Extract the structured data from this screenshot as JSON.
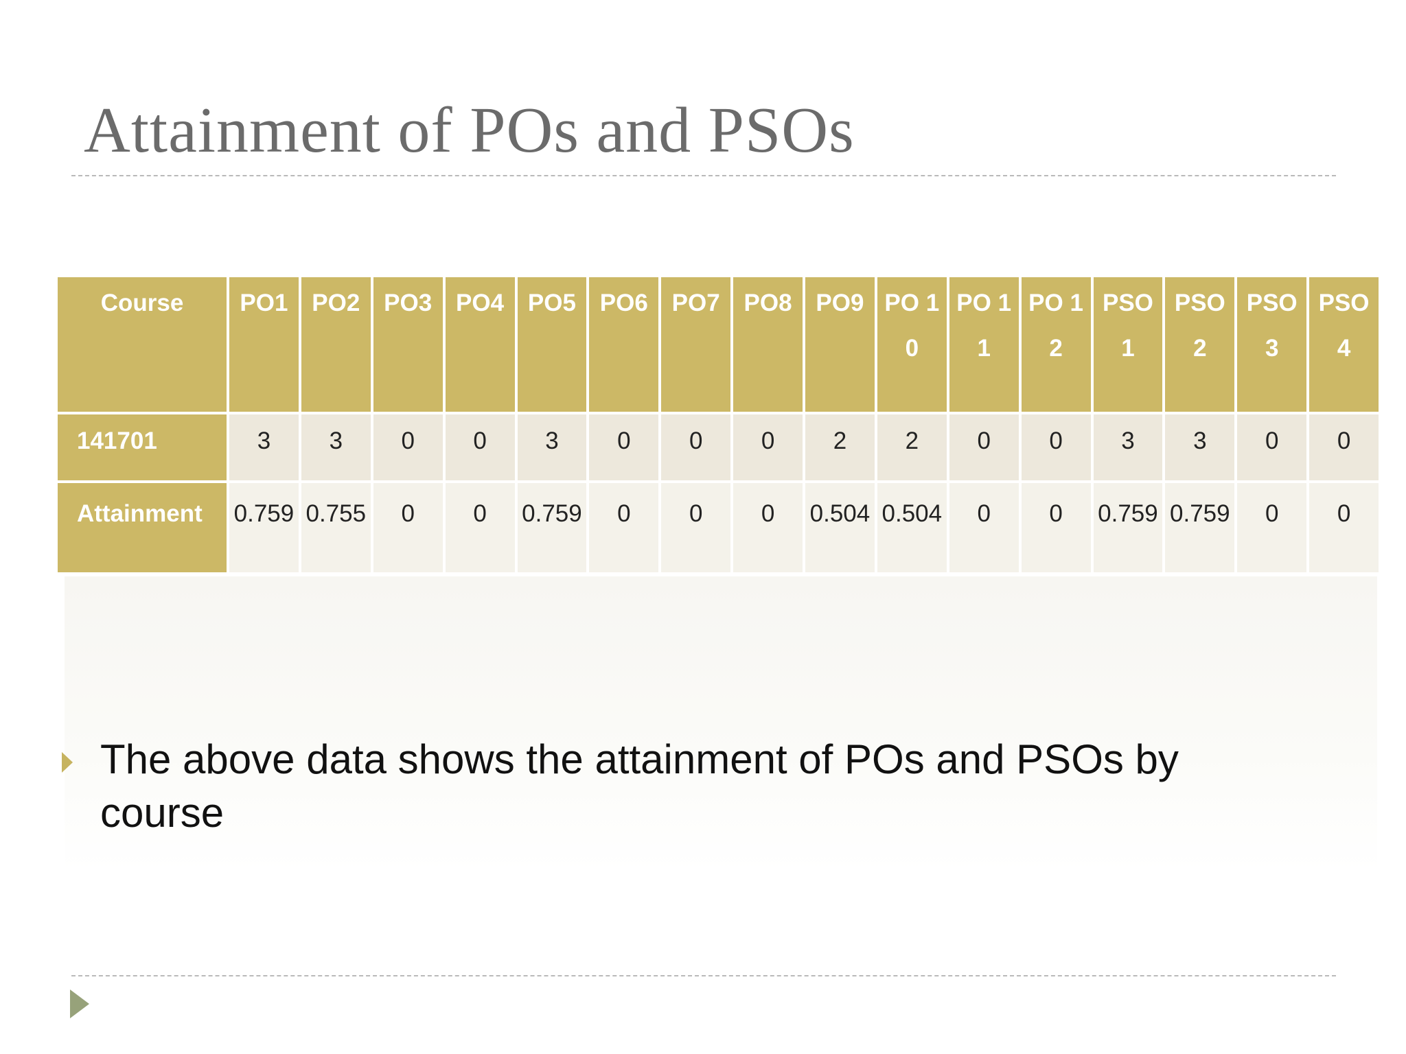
{
  "slide": {
    "title": "Attainment of POs and PSOs"
  },
  "table": {
    "header_row_label": "Course",
    "columns": [
      "PO1",
      "PO2",
      "PO3",
      "PO4",
      "PO5",
      "PO6",
      "PO7",
      "PO8",
      "PO9",
      "PO 10",
      "PO 11",
      "PO 12",
      "PSO 1",
      "PSO 2",
      "PSO 3",
      "PSO 4"
    ],
    "rows": [
      {
        "label": "141701",
        "values": [
          "3",
          "3",
          "0",
          "0",
          "3",
          "0",
          "0",
          "0",
          "2",
          "2",
          "0",
          "0",
          "3",
          "3",
          "0",
          "0"
        ]
      },
      {
        "label": "Attainment",
        "values": [
          "0.759",
          "0.755",
          "0",
          "0",
          "0.759",
          "0",
          "0",
          "0",
          "0.504",
          "0.504",
          "0",
          "0",
          "0.759",
          "0.759",
          "0",
          "0"
        ]
      }
    ]
  },
  "bullets": [
    {
      "text": "The above data shows the attainment of POs and PSOs by course",
      "icon": "triangle-bullet-icon"
    }
  ],
  "colors": {
    "header_fill": "#ccb866",
    "row1_fill": "#ede8dc",
    "row2_fill": "#f4f2ea",
    "title_color": "#6b6b6b",
    "bullet_color": "#c6b35f",
    "corner_arrow_color": "#97a27a"
  }
}
